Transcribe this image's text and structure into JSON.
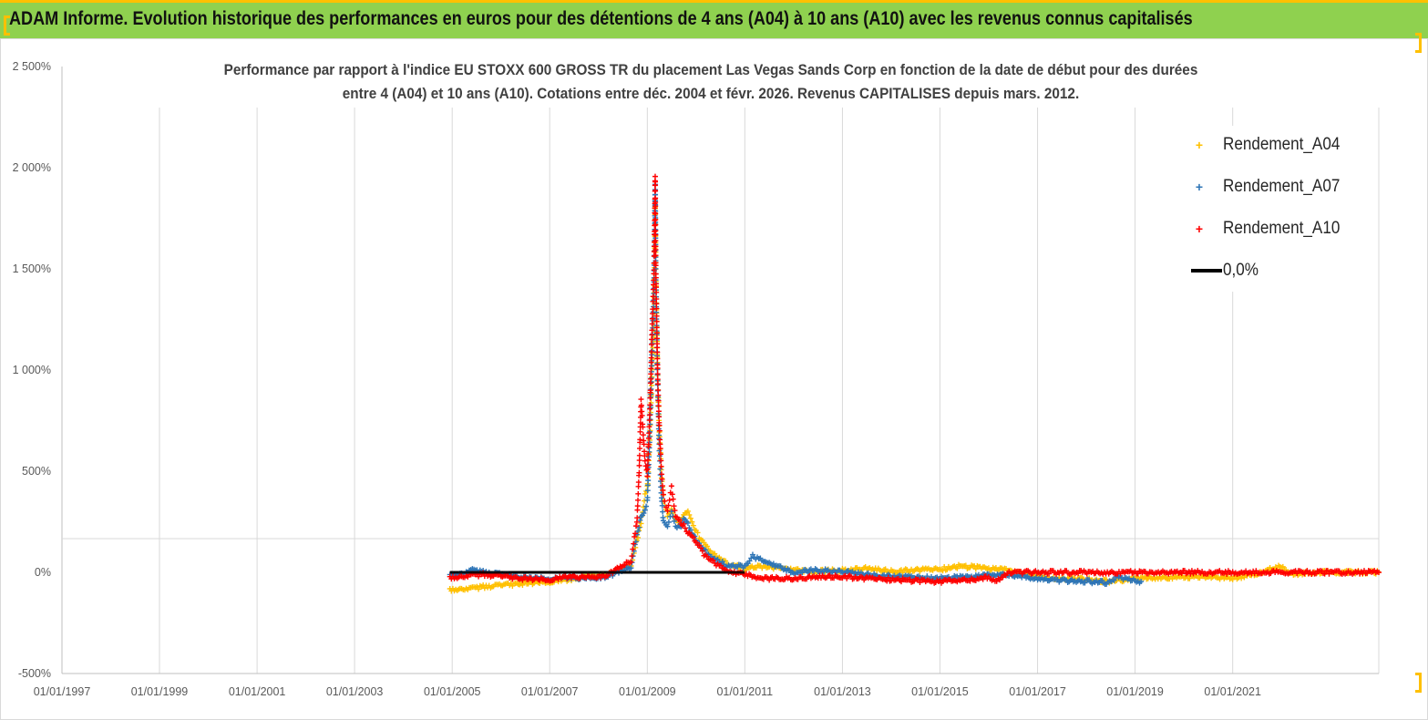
{
  "banner": {
    "title": "ADAM Informe. Evolution historique des performances en euros pour des détentions de 4 ans (A04) à 10 ans (A10) avec les revenus connus capitalisés"
  },
  "colors": {
    "banner_bg": "#8fd14f",
    "accent": "#ffc000",
    "A04": "#ffc000",
    "A07": "#2e75b6",
    "A10": "#ff0000",
    "zero_line": "#000000"
  },
  "chart_data": {
    "type": "scatter",
    "title_line1": "Performance par rapport à l'indice EU STOXX 600 GROSS TR  du placement Las Vegas Sands Corp en fonction de la date de début pour des durées",
    "title_line2": "entre 4 (A04) et 10 ans (A10). Cotations entre déc. 2004 et févr. 2026. Revenus CAPITALISES depuis mars. 2012.",
    "y_unit": "%",
    "ylim": [
      -500,
      2500
    ],
    "yticks": [
      -500,
      0,
      500,
      1000,
      1500,
      2000,
      2500
    ],
    "ytick_labels": [
      "-500%",
      "0%",
      "500%",
      "1 000%",
      "1 500%",
      "2 000%",
      "2 500%"
    ],
    "xlim": [
      "1997-01-01",
      "2023-12-31"
    ],
    "xtick_labels": [
      "01/01/1997",
      "01/01/1999",
      "01/01/2001",
      "01/01/2003",
      "01/01/2005",
      "01/01/2007",
      "01/01/2009",
      "01/01/2011",
      "01/01/2013",
      "01/01/2015",
      "01/01/2017",
      "01/01/2019",
      "01/01/2021"
    ],
    "grid": "vertical",
    "legend_position": "top-right",
    "legend": [
      {
        "label": "Rendement_A04",
        "marker": "+",
        "color": "#ffc000"
      },
      {
        "label": "Rendement_A07",
        "marker": "+",
        "color": "#2e75b6"
      },
      {
        "label": "Rendement_A10",
        "marker": "+",
        "color": "#ff0000"
      },
      {
        "label": "0,0%",
        "marker": "line",
        "color": "#000000"
      }
    ],
    "series": [
      {
        "name": "Rendement_A04",
        "color": "#ffc000",
        "points": [
          [
            "2004-12-15",
            -90
          ],
          [
            "2005-03-01",
            -85
          ],
          [
            "2005-06-01",
            -80
          ],
          [
            "2005-09-01",
            -70
          ],
          [
            "2006-01-01",
            -65
          ],
          [
            "2006-06-01",
            -55
          ],
          [
            "2007-01-01",
            -45
          ],
          [
            "2007-06-01",
            -35
          ],
          [
            "2007-10-01",
            -20
          ],
          [
            "2008-03-01",
            -10
          ],
          [
            "2008-06-01",
            10
          ],
          [
            "2008-09-01",
            40
          ],
          [
            "2008-10-15",
            150
          ],
          [
            "2008-11-15",
            250
          ],
          [
            "2008-12-15",
            380
          ],
          [
            "2009-01-01",
            420
          ],
          [
            "2009-01-20",
            650
          ],
          [
            "2009-02-05",
            1000
          ],
          [
            "2009-02-20",
            1250
          ],
          [
            "2009-03-01",
            1830
          ],
          [
            "2009-03-05",
            1500
          ],
          [
            "2009-03-10",
            1300
          ],
          [
            "2009-03-20",
            950
          ],
          [
            "2009-04-01",
            700
          ],
          [
            "2009-04-15",
            500
          ],
          [
            "2009-05-01",
            350
          ],
          [
            "2009-06-01",
            280
          ],
          [
            "2009-07-01",
            320
          ],
          [
            "2009-08-01",
            260
          ],
          [
            "2009-09-01",
            240
          ],
          [
            "2009-10-01",
            280
          ],
          [
            "2009-11-01",
            300
          ],
          [
            "2010-01-01",
            200
          ],
          [
            "2010-03-01",
            140
          ],
          [
            "2010-06-01",
            80
          ],
          [
            "2010-09-01",
            40
          ],
          [
            "2011-01-01",
            20
          ],
          [
            "2011-06-01",
            30
          ],
          [
            "2012-01-01",
            10
          ],
          [
            "2012-06-01",
            5
          ],
          [
            "2013-01-01",
            10
          ],
          [
            "2013-06-01",
            20
          ],
          [
            "2014-01-01",
            5
          ],
          [
            "2014-06-01",
            10
          ],
          [
            "2015-01-01",
            15
          ],
          [
            "2015-06-01",
            30
          ],
          [
            "2016-01-01",
            20
          ],
          [
            "2016-06-01",
            10
          ],
          [
            "2017-01-01",
            -20
          ],
          [
            "2017-06-01",
            -30
          ],
          [
            "2018-01-01",
            -35
          ],
          [
            "2018-06-01",
            -45
          ],
          [
            "2019-01-01",
            -30
          ],
          [
            "2019-06-01",
            -25
          ],
          [
            "2020-01-01",
            -25
          ],
          [
            "2020-06-01",
            -20
          ],
          [
            "2021-01-01",
            -30
          ],
          [
            "2021-06-01",
            -10
          ],
          [
            "2022-01-01",
            30
          ],
          [
            "2022-04-01",
            -10
          ],
          [
            "2022-08-01",
            0
          ],
          [
            "2023-12-31",
            0
          ]
        ]
      },
      {
        "name": "Rendement_A07",
        "color": "#2e75b6",
        "points": [
          [
            "2004-12-15",
            -20
          ],
          [
            "2005-03-01",
            -10
          ],
          [
            "2005-06-01",
            10
          ],
          [
            "2005-09-01",
            0
          ],
          [
            "2006-01-01",
            -10
          ],
          [
            "2006-06-01",
            -25
          ],
          [
            "2007-01-01",
            -30
          ],
          [
            "2007-06-01",
            -25
          ],
          [
            "2007-10-01",
            -30
          ],
          [
            "2008-03-01",
            -20
          ],
          [
            "2008-06-01",
            0
          ],
          [
            "2008-09-01",
            30
          ],
          [
            "2008-10-15",
            180
          ],
          [
            "2008-11-15",
            280
          ],
          [
            "2008-12-15",
            300
          ],
          [
            "2009-01-01",
            350
          ],
          [
            "2009-01-20",
            700
          ],
          [
            "2009-02-05",
            1100
          ],
          [
            "2009-02-20",
            1400
          ],
          [
            "2009-03-01",
            1920
          ],
          [
            "2009-03-05",
            1450
          ],
          [
            "2009-03-10",
            1250
          ],
          [
            "2009-03-20",
            900
          ],
          [
            "2009-04-01",
            600
          ],
          [
            "2009-04-15",
            400
          ],
          [
            "2009-05-01",
            250
          ],
          [
            "2009-06-01",
            220
          ],
          [
            "2009-07-01",
            300
          ],
          [
            "2009-08-01",
            230
          ],
          [
            "2009-09-01",
            220
          ],
          [
            "2009-10-01",
            260
          ],
          [
            "2009-11-01",
            240
          ],
          [
            "2010-01-01",
            160
          ],
          [
            "2010-03-01",
            110
          ],
          [
            "2010-06-01",
            60
          ],
          [
            "2010-09-01",
            30
          ],
          [
            "2011-01-01",
            30
          ],
          [
            "2011-03-01",
            80
          ],
          [
            "2011-06-01",
            50
          ],
          [
            "2012-01-01",
            0
          ],
          [
            "2012-06-01",
            10
          ],
          [
            "2013-01-01",
            5
          ],
          [
            "2013-06-01",
            -10
          ],
          [
            "2014-01-01",
            -20
          ],
          [
            "2014-06-01",
            -25
          ],
          [
            "2015-01-01",
            -30
          ],
          [
            "2015-06-01",
            -25
          ],
          [
            "2016-01-01",
            -15
          ],
          [
            "2016-06-01",
            -10
          ],
          [
            "2017-01-01",
            -30
          ],
          [
            "2017-06-01",
            -40
          ],
          [
            "2018-01-01",
            -45
          ],
          [
            "2018-06-01",
            -50
          ],
          [
            "2018-09-01",
            -25
          ],
          [
            "2019-01-01",
            -40
          ],
          [
            "2019-02-15",
            -45
          ]
        ]
      },
      {
        "name": "Rendement_A10",
        "color": "#ff0000",
        "points": [
          [
            "2004-12-15",
            -30
          ],
          [
            "2005-03-01",
            -25
          ],
          [
            "2005-06-01",
            -15
          ],
          [
            "2005-09-01",
            -10
          ],
          [
            "2006-01-01",
            -20
          ],
          [
            "2006-06-01",
            -30
          ],
          [
            "2007-01-01",
            -35
          ],
          [
            "2007-06-01",
            -20
          ],
          [
            "2007-10-01",
            -25
          ],
          [
            "2008-03-01",
            -15
          ],
          [
            "2008-06-01",
            20
          ],
          [
            "2008-09-01",
            60
          ],
          [
            "2008-10-15",
            250
          ],
          [
            "2008-11-01",
            500
          ],
          [
            "2008-11-15",
            850
          ],
          [
            "2008-12-15",
            550
          ],
          [
            "2009-01-01",
            480
          ],
          [
            "2009-01-20",
            800
          ],
          [
            "2009-02-05",
            1200
          ],
          [
            "2009-02-20",
            1500
          ],
          [
            "2009-03-01",
            1960
          ],
          [
            "2009-03-05",
            1510
          ],
          [
            "2009-03-10",
            1350
          ],
          [
            "2009-03-20",
            950
          ],
          [
            "2009-04-01",
            720
          ],
          [
            "2009-04-15",
            520
          ],
          [
            "2009-05-01",
            380
          ],
          [
            "2009-06-01",
            300
          ],
          [
            "2009-07-01",
            420
          ],
          [
            "2009-08-01",
            280
          ],
          [
            "2009-09-01",
            250
          ],
          [
            "2009-10-01",
            230
          ],
          [
            "2009-11-01",
            200
          ],
          [
            "2010-01-01",
            150
          ],
          [
            "2010-03-01",
            90
          ],
          [
            "2010-06-01",
            40
          ],
          [
            "2010-09-01",
            0
          ],
          [
            "2011-01-01",
            -10
          ],
          [
            "2011-06-01",
            -30
          ],
          [
            "2012-01-01",
            -30
          ],
          [
            "2012-06-01",
            -25
          ],
          [
            "2013-01-01",
            -20
          ],
          [
            "2013-06-01",
            -30
          ],
          [
            "2014-01-01",
            -35
          ],
          [
            "2014-06-01",
            -40
          ],
          [
            "2015-01-01",
            -45
          ],
          [
            "2015-06-01",
            -40
          ],
          [
            "2016-01-01",
            -25
          ],
          [
            "2016-03-01",
            -40
          ],
          [
            "2016-06-01",
            0
          ],
          [
            "2017-06-01",
            0
          ],
          [
            "2019-01-01",
            0
          ],
          [
            "2021-01-01",
            0
          ],
          [
            "2023-12-31",
            0
          ]
        ]
      },
      {
        "name": "0,0%",
        "color": "#000000",
        "line": [
          [
            "2004-12-15",
            0
          ],
          [
            "2010-12-31",
            0
          ]
        ]
      }
    ]
  }
}
